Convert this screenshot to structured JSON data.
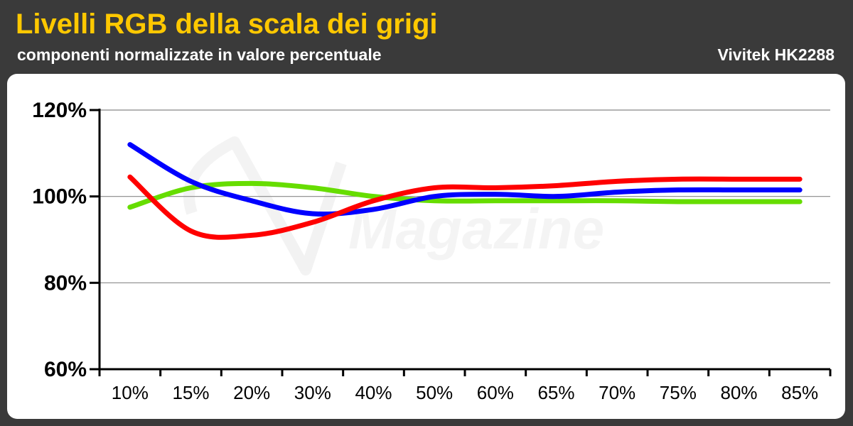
{
  "header": {
    "title": "Livelli RGB della scala dei grigi",
    "subtitle": "componenti normalizzate in valore percentuale",
    "brand": "Vivitek HK2288"
  },
  "watermark": {
    "text": "Magazine"
  },
  "colors": {
    "title": "#ffc800",
    "background": "#3a3a3a",
    "red": "#ff0000",
    "green": "#66dd00",
    "blue": "#0000ff"
  },
  "chart_data": {
    "type": "line",
    "categories": [
      "10%",
      "15%",
      "20%",
      "30%",
      "40%",
      "50%",
      "60%",
      "65%",
      "70%",
      "75%",
      "80%",
      "85%"
    ],
    "ylim": [
      60,
      120
    ],
    "yticks": [
      "60%",
      "80%",
      "100%",
      "120%"
    ],
    "grid": true,
    "series": [
      {
        "key": "blue",
        "values": [
          112,
          103.5,
          99,
          96,
          97,
          100,
          100.5,
          100,
          101,
          101.5,
          101.5,
          101.5
        ]
      },
      {
        "key": "red",
        "values": [
          104.5,
          92,
          91,
          94,
          99,
          102,
          102,
          102.5,
          103.5,
          104,
          104,
          104
        ]
      },
      {
        "key": "green",
        "values": [
          97.5,
          102,
          103,
          102,
          100,
          99,
          99,
          99,
          99,
          98.8,
          98.8,
          98.8
        ]
      }
    ]
  }
}
